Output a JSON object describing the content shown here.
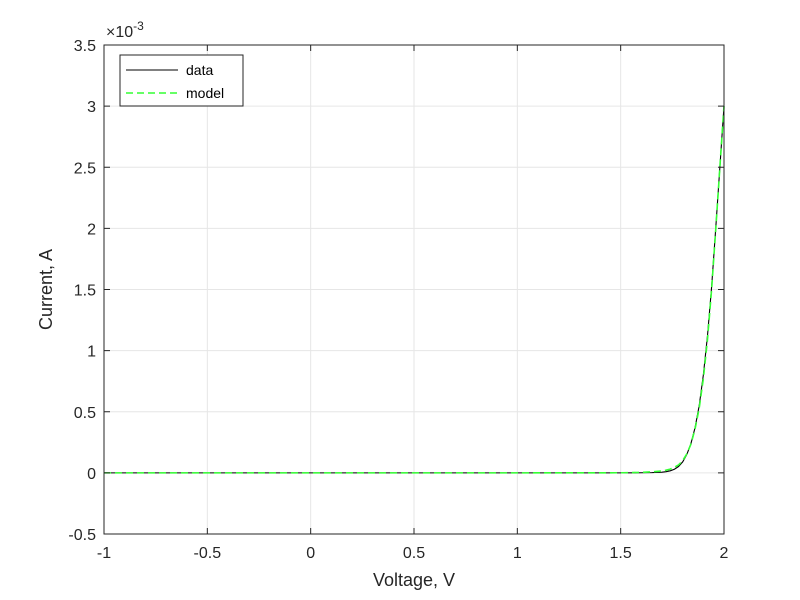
{
  "chart_data": {
    "type": "line",
    "title": "",
    "xlabel": "Voltage, V",
    "ylabel": "Current, A",
    "xlim": [
      -1,
      2
    ],
    "ylim": [
      -0.5,
      3.5
    ],
    "y_exponent_label": "10",
    "y_exponent_power": "-3",
    "y_exponent_prefix": "×",
    "x_ticks": [
      -1,
      -0.5,
      0,
      0.5,
      1,
      1.5,
      2
    ],
    "x_tick_labels": [
      "-1",
      "-0.5",
      "0",
      "0.5",
      "1",
      "1.5",
      "2"
    ],
    "y_ticks": [
      -0.5,
      0,
      0.5,
      1,
      1.5,
      2,
      2.5,
      3,
      3.5
    ],
    "y_tick_labels": [
      "-0.5",
      "0",
      "0.5",
      "1",
      "1.5",
      "2",
      "2.5",
      "3",
      "3.5"
    ],
    "grid": true,
    "legend_position": "top-left",
    "series": [
      {
        "name": "data",
        "color": "#000000",
        "style": "solid",
        "x": [
          -1,
          -0.5,
          0,
          0.5,
          1,
          1.5,
          1.6,
          1.65,
          1.7,
          1.72,
          1.74,
          1.76,
          1.78,
          1.8,
          1.82,
          1.84,
          1.86,
          1.88,
          1.9,
          1.92,
          1.94,
          1.96,
          1.98,
          2.0
        ],
        "values": [
          0,
          0,
          0,
          0,
          0,
          0,
          0.001,
          0.002,
          0.006,
          0.01,
          0.017,
          0.03,
          0.052,
          0.09,
          0.15,
          0.24,
          0.37,
          0.55,
          0.8,
          1.12,
          1.52,
          2.0,
          2.5,
          3.0
        ]
      },
      {
        "name": "model",
        "color": "#33ff33",
        "style": "dashed",
        "x": [
          -1,
          -0.5,
          0,
          0.5,
          1,
          1.5,
          1.6,
          1.65,
          1.7,
          1.72,
          1.74,
          1.76,
          1.78,
          1.8,
          1.82,
          1.84,
          1.86,
          1.88,
          1.9,
          1.92,
          1.94,
          1.96,
          1.98,
          2.0
        ],
        "values": [
          0,
          0,
          0,
          0,
          0,
          0.001,
          0.004,
          0.008,
          0.016,
          0.022,
          0.031,
          0.045,
          0.065,
          0.1,
          0.155,
          0.235,
          0.36,
          0.53,
          0.77,
          1.09,
          1.5,
          1.99,
          2.5,
          3.0
        ]
      }
    ]
  }
}
